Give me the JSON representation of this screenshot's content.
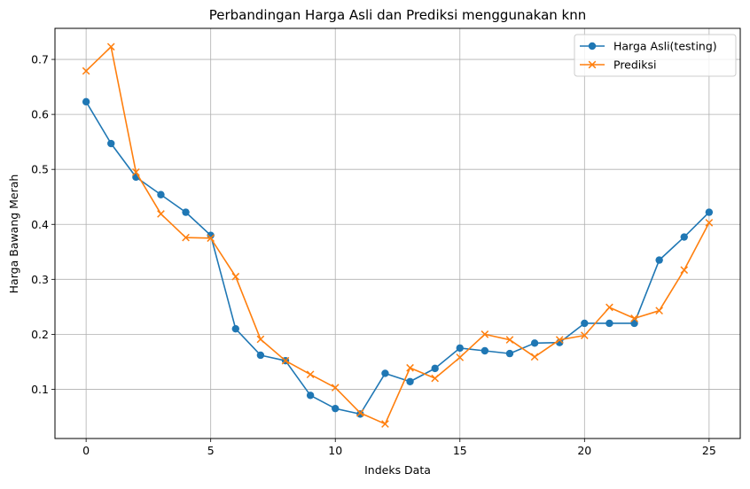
{
  "chart_data": {
    "type": "line",
    "title": "Perbandingan Harga Asli dan Prediksi menggunakan knn",
    "xlabel": "Indeks Data",
    "ylabel": "Harga Bawang Merah",
    "xlim": [
      -1.25,
      26.25
    ],
    "ylim": [
      0.0105,
      0.7565
    ],
    "xticks": [
      0,
      5,
      10,
      15,
      20,
      25
    ],
    "yticks": [
      0.1,
      0.2,
      0.3,
      0.4,
      0.5,
      0.6,
      0.7
    ],
    "grid": true,
    "legend_position": "top-right",
    "x": [
      0,
      1,
      2,
      3,
      4,
      5,
      6,
      7,
      8,
      9,
      10,
      11,
      12,
      13,
      14,
      15,
      16,
      17,
      18,
      19,
      20,
      21,
      22,
      23,
      24,
      25
    ],
    "series": [
      {
        "name": "Harga Asli(testing)",
        "color": "#1f77b4",
        "marker": "circle",
        "values": [
          0.623,
          0.547,
          0.486,
          0.454,
          0.422,
          0.38,
          0.21,
          0.162,
          0.152,
          0.089,
          0.065,
          0.055,
          0.129,
          0.114,
          0.138,
          0.175,
          0.17,
          0.165,
          0.184,
          0.185,
          0.22,
          0.22,
          0.22,
          0.335,
          0.377,
          0.422
        ]
      },
      {
        "name": "Prediksi",
        "color": "#ff7f0e",
        "marker": "x",
        "values": [
          0.679,
          0.723,
          0.495,
          0.419,
          0.376,
          0.375,
          0.305,
          0.191,
          0.152,
          0.127,
          0.103,
          0.057,
          0.037,
          0.139,
          0.12,
          0.158,
          0.2,
          0.19,
          0.159,
          0.19,
          0.198,
          0.249,
          0.229,
          0.243,
          0.317,
          0.403
        ]
      }
    ]
  }
}
